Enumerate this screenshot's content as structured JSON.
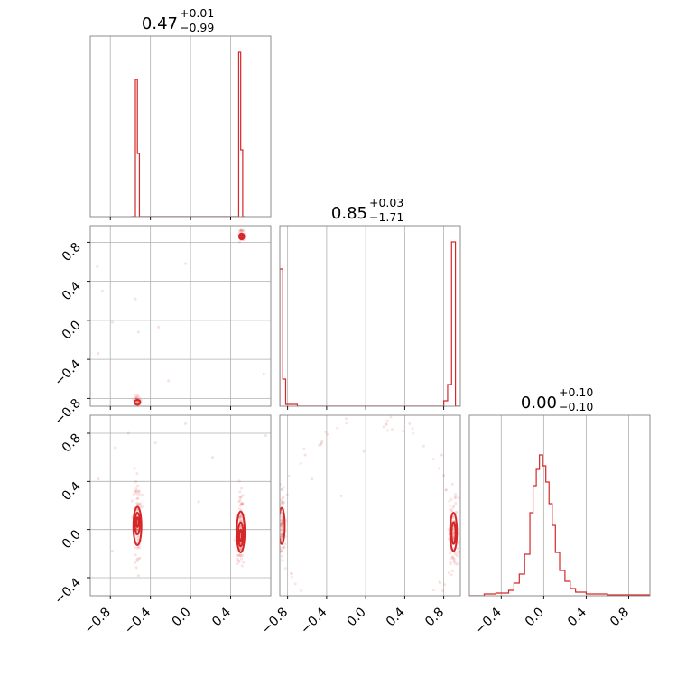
{
  "chart_data": {
    "type": "corner",
    "color": "#d62728",
    "grid": true,
    "panels": [
      {
        "id": "hist-0",
        "type": "histogram",
        "title_value": "0.47",
        "title_plus": "+0.01",
        "title_minus": "−0.99",
        "xlim": [
          -1.0,
          0.8
        ],
        "xticks": [
          -0.8,
          -0.4,
          0.0,
          0.4
        ],
        "bins": [
          {
            "x0": -0.59,
            "x1": -0.55,
            "height": 0.0
          },
          {
            "x0": -0.55,
            "x1": -0.53,
            "height": 0.76
          },
          {
            "x0": -0.53,
            "x1": -0.51,
            "height": 0.35
          },
          {
            "x0": -0.51,
            "x1": -0.49,
            "height": 0.0
          },
          {
            "x0": 0.46,
            "x1": 0.48,
            "height": 0.0
          },
          {
            "x0": 0.48,
            "x1": 0.5,
            "height": 0.91
          },
          {
            "x0": 0.5,
            "x1": 0.52,
            "height": 0.37
          },
          {
            "x0": 0.52,
            "x1": 0.54,
            "height": 0.0
          }
        ]
      },
      {
        "id": "hist-1",
        "type": "histogram",
        "title_value": "0.85",
        "title_plus": "+0.03",
        "title_minus": "−1.71",
        "xlim": [
          -0.88,
          0.97
        ],
        "xticks": [
          -0.8,
          -0.4,
          0.0,
          0.4,
          0.8
        ],
        "bins": [
          {
            "x0": -0.88,
            "x1": -0.85,
            "height": 0.76
          },
          {
            "x0": -0.85,
            "x1": -0.82,
            "height": 0.15
          },
          {
            "x0": -0.82,
            "x1": -0.7,
            "height": 0.01
          },
          {
            "x0": -0.7,
            "x1": 0.8,
            "height": 0.0
          },
          {
            "x0": 0.8,
            "x1": 0.84,
            "height": 0.03
          },
          {
            "x0": 0.84,
            "x1": 0.88,
            "height": 0.12
          },
          {
            "x0": 0.88,
            "x1": 0.92,
            "height": 0.91
          },
          {
            "x0": 0.92,
            "x1": 0.97,
            "height": 0.0
          }
        ]
      },
      {
        "id": "hist-2",
        "type": "histogram",
        "title_value": "0.00",
        "title_plus": "+0.10",
        "title_minus": "−0.10",
        "xlim": [
          -0.7,
          1.0
        ],
        "xticks": [
          -0.4,
          0.0,
          0.4,
          0.8
        ],
        "xtick_labels": [
          "−0.4",
          "0.0",
          "0.4",
          "0.8"
        ],
        "bins": [
          {
            "x0": -0.7,
            "x1": -0.56,
            "height": 0.0
          },
          {
            "x0": -0.56,
            "x1": -0.45,
            "height": 0.01
          },
          {
            "x0": -0.45,
            "x1": -0.33,
            "height": 0.015
          },
          {
            "x0": -0.33,
            "x1": -0.28,
            "height": 0.03
          },
          {
            "x0": -0.28,
            "x1": -0.23,
            "height": 0.07
          },
          {
            "x0": -0.23,
            "x1": -0.18,
            "height": 0.12
          },
          {
            "x0": -0.18,
            "x1": -0.13,
            "height": 0.23
          },
          {
            "x0": -0.13,
            "x1": -0.1,
            "height": 0.46
          },
          {
            "x0": -0.1,
            "x1": -0.07,
            "height": 0.61
          },
          {
            "x0": -0.07,
            "x1": -0.04,
            "height": 0.7
          },
          {
            "x0": -0.04,
            "x1": -0.01,
            "height": 0.78
          },
          {
            "x0": -0.01,
            "x1": 0.02,
            "height": 0.72
          },
          {
            "x0": 0.02,
            "x1": 0.05,
            "height": 0.63
          },
          {
            "x0": 0.05,
            "x1": 0.08,
            "height": 0.51
          },
          {
            "x0": 0.08,
            "x1": 0.11,
            "height": 0.39
          },
          {
            "x0": 0.11,
            "x1": 0.15,
            "height": 0.24
          },
          {
            "x0": 0.15,
            "x1": 0.2,
            "height": 0.14
          },
          {
            "x0": 0.2,
            "x1": 0.25,
            "height": 0.08
          },
          {
            "x0": 0.25,
            "x1": 0.3,
            "height": 0.04
          },
          {
            "x0": 0.3,
            "x1": 0.4,
            "height": 0.02
          },
          {
            "x0": 0.4,
            "x1": 0.6,
            "height": 0.01
          },
          {
            "x0": 0.6,
            "x1": 1.0,
            "height": 0.005
          }
        ]
      },
      {
        "id": "scatter-1-0",
        "type": "density",
        "xlim": [
          -1.0,
          0.8
        ],
        "ylim": [
          -0.88,
          0.97
        ],
        "xticks": [
          -0.8,
          -0.4,
          0.0,
          0.4
        ],
        "yticks": [
          -0.8,
          -0.4,
          0.0,
          0.4,
          0.8
        ],
        "ytick_labels": [
          "−0.8",
          "−0.4",
          "0.0",
          "0.4",
          "0.8"
        ],
        "clusters": [
          {
            "cx": 0.51,
            "cy": 0.86,
            "sx": 0.015,
            "sy": 0.03,
            "n": 40
          },
          {
            "cx": -0.53,
            "cy": -0.82,
            "sx": 0.02,
            "sy": 0.03,
            "n": 35
          }
        ],
        "contours": [
          {
            "cx": 0.51,
            "cy": 0.86,
            "rx": 0.025,
            "ry": 0.03
          },
          {
            "cx": 0.51,
            "cy": 0.86,
            "rx": 0.015,
            "ry": 0.015
          },
          {
            "cx": -0.53,
            "cy": -0.84,
            "rx": 0.03,
            "ry": 0.025
          }
        ],
        "outliers": [
          [
            -0.93,
            0.55
          ],
          [
            -0.88,
            0.3
          ],
          [
            -0.78,
            -0.02
          ],
          [
            -0.92,
            -0.34
          ],
          [
            -0.55,
            0.22
          ],
          [
            -0.32,
            -0.07
          ],
          [
            -0.05,
            0.58
          ],
          [
            -0.22,
            -0.62
          ],
          [
            -0.52,
            -0.12
          ],
          [
            0.73,
            -0.55
          ]
        ]
      },
      {
        "id": "scatter-2-0",
        "type": "density",
        "xlim": [
          -1.0,
          0.8
        ],
        "ylim": [
          -0.55,
          0.95
        ],
        "xticks": [
          -0.8,
          -0.4,
          0.0,
          0.4
        ],
        "yticks": [
          -0.4,
          0.0,
          0.4,
          0.8
        ],
        "xtick_labels": [
          "−0.8",
          "−0.4",
          "0.0",
          "0.4"
        ],
        "ytick_labels": [
          "−0.4",
          "0.0",
          "0.4",
          "0.8"
        ],
        "clusters": [
          {
            "cx": -0.53,
            "cy": 0.05,
            "sx": 0.02,
            "sy": 0.15,
            "n": 120
          },
          {
            "cx": 0.5,
            "cy": -0.02,
            "sx": 0.02,
            "sy": 0.16,
            "n": 120
          }
        ],
        "contours": [
          {
            "cx": -0.53,
            "cy": 0.03,
            "rx": 0.04,
            "ry": 0.16
          },
          {
            "cx": -0.53,
            "cy": 0.05,
            "rx": 0.025,
            "ry": 0.09
          },
          {
            "cx": -0.53,
            "cy": 0.06,
            "rx": 0.012,
            "ry": 0.04
          },
          {
            "cx": 0.5,
            "cy": -0.02,
            "rx": 0.04,
            "ry": 0.17
          },
          {
            "cx": 0.5,
            "cy": -0.04,
            "rx": 0.025,
            "ry": 0.1
          },
          {
            "cx": 0.5,
            "cy": -0.05,
            "rx": 0.012,
            "ry": 0.05
          }
        ],
        "outliers": [
          [
            -0.92,
            0.42
          ],
          [
            -0.75,
            0.68
          ],
          [
            -0.62,
            0.8
          ],
          [
            -0.35,
            0.72
          ],
          [
            -0.05,
            0.88
          ],
          [
            0.22,
            0.6
          ],
          [
            0.08,
            0.23
          ],
          [
            -0.78,
            -0.18
          ],
          [
            0.75,
            0.78
          ]
        ]
      },
      {
        "id": "scatter-2-1",
        "type": "density",
        "xlim": [
          -0.88,
          0.97
        ],
        "ylim": [
          -0.55,
          0.95
        ],
        "xticks": [
          -0.8,
          -0.4,
          0.0,
          0.4,
          0.8
        ],
        "xtick_labels": [
          "−0.8",
          "−0.4",
          "0.0",
          "0.4",
          "0.8"
        ],
        "clusters": [
          {
            "cx": -0.86,
            "cy": 0.03,
            "sx": 0.015,
            "sy": 0.12,
            "n": 80
          },
          {
            "cx": 0.9,
            "cy": -0.02,
            "sx": 0.02,
            "sy": 0.14,
            "n": 110
          }
        ],
        "contours": [
          {
            "cx": -0.86,
            "cy": 0.03,
            "rx": 0.03,
            "ry": 0.15
          },
          {
            "cx": 0.9,
            "cy": -0.02,
            "rx": 0.035,
            "ry": 0.16
          },
          {
            "cx": 0.9,
            "cy": -0.03,
            "rx": 0.02,
            "ry": 0.09
          }
        ],
        "arcs": [
          {
            "cx": 0.0,
            "cy": 0.0,
            "r": 0.88,
            "from": 100,
            "to": 260,
            "n": 50
          },
          {
            "cx": 0.0,
            "cy": 0.0,
            "r": 0.9,
            "from": -80,
            "to": 80,
            "n": 50
          }
        ],
        "outliers": [
          [
            -0.62,
            0.62
          ],
          [
            -0.55,
            0.42
          ],
          [
            -0.45,
            0.72
          ],
          [
            -0.25,
            0.28
          ],
          [
            -0.02,
            0.65
          ],
          [
            0.45,
            0.88
          ],
          [
            0.78,
            0.62
          ],
          [
            0.8,
            0.45
          ]
        ]
      }
    ]
  }
}
